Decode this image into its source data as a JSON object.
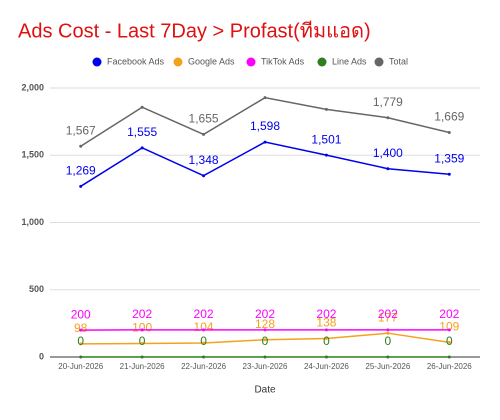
{
  "chart_data": {
    "type": "line",
    "title": "Ads Cost - Last 7Day > Profast(ทีมแอด)",
    "x_label": "Date",
    "categories": [
      "20-Jun-2026",
      "21-Jun-2026",
      "22-Jun-2026",
      "23-Jun-2026",
      "24-Jun-2026",
      "25-Jun-2026",
      "26-Jun-2026"
    ],
    "series": [
      {
        "name": "Facebook Ads",
        "color": "#0000ee",
        "values": [
          1269,
          1555,
          1348,
          1598,
          1501,
          1400,
          1359
        ],
        "value_labels": [
          "1,269",
          "1,555",
          "1,348",
          "1,598",
          "1,501",
          "1,400",
          "1,359"
        ]
      },
      {
        "name": "Google Ads",
        "color": "#f4a21c",
        "values": [
          98,
          100,
          104,
          128,
          138,
          177,
          109
        ]
      },
      {
        "name": "TikTok Ads",
        "color": "#ff00ff",
        "values": [
          200,
          202,
          202,
          202,
          202,
          202,
          202
        ]
      },
      {
        "name": "Line Ads",
        "color": "#2e7d1e",
        "values": [
          0,
          0,
          0,
          0,
          0,
          0,
          0
        ]
      },
      {
        "name": "Total",
        "color": "#666666",
        "values": [
          1567,
          1857,
          1655,
          1928,
          1841,
          1779,
          1669
        ],
        "value_labels": [
          "1,567",
          null,
          "1,655",
          null,
          null,
          "1,779",
          "1,669"
        ]
      }
    ],
    "ylim": [
      0,
      2000
    ],
    "yticks": [
      0,
      500,
      {
        "value": 1000,
        "label": "1,000"
      },
      {
        "value": 1500,
        "label": "1,500"
      },
      {
        "value": 2000,
        "label": "2,000"
      }
    ],
    "grid": true,
    "legend": "top"
  }
}
